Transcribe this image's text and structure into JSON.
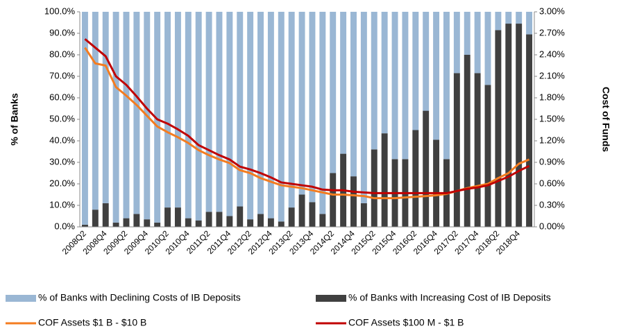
{
  "chart_data": {
    "type": "bar",
    "y_title": "% of Banks",
    "y2_title": "Cost of Funds",
    "categories": [
      "2008Q2",
      null,
      "2008Q4",
      null,
      "2009Q2",
      null,
      "2009Q4",
      null,
      "2010Q2",
      null,
      "2010Q4",
      null,
      "2011Q2",
      null,
      "2011Q4",
      null,
      "2012Q2",
      null,
      "2012Q4",
      null,
      "2013Q2",
      null,
      "2013Q4",
      null,
      "2014Q2",
      null,
      "2014Q4",
      null,
      "2015Q2",
      null,
      "2015Q4",
      null,
      "2016Q2",
      null,
      "2016Q4",
      null,
      "2017Q2",
      null,
      "2017Q4",
      null,
      "2018Q2",
      null,
      "2018Q4",
      null
    ],
    "ylim": [
      0,
      100
    ],
    "yticks": [
      {
        "value": 0,
        "label": "0.0%"
      },
      {
        "value": 10,
        "label": "10.0%"
      },
      {
        "value": 20,
        "label": "20.0%"
      },
      {
        "value": 30,
        "label": "30.0%"
      },
      {
        "value": 40,
        "label": "40.0%"
      },
      {
        "value": 50,
        "label": "50.0%"
      },
      {
        "value": 60,
        "label": "60.0%"
      },
      {
        "value": 70,
        "label": "70.0%"
      },
      {
        "value": 80,
        "label": "80.0%"
      },
      {
        "value": 90,
        "label": "90.0%"
      },
      {
        "value": 100,
        "label": "100.0%"
      }
    ],
    "y2lim": [
      0,
      3
    ],
    "y2ticks": [
      {
        "value": 0,
        "label": "0.00%"
      },
      {
        "value": 0.3,
        "label": "0.30%"
      },
      {
        "value": 0.6,
        "label": "0.60%"
      },
      {
        "value": 0.9,
        "label": "0.90%"
      },
      {
        "value": 1.2,
        "label": "1.20%"
      },
      {
        "value": 1.5,
        "label": "1.50%"
      },
      {
        "value": 1.8,
        "label": "1.80%"
      },
      {
        "value": 2.1,
        "label": "2.10%"
      },
      {
        "value": 2.4,
        "label": "2.40%"
      },
      {
        "value": 2.7,
        "label": "2.70%"
      },
      {
        "value": 3,
        "label": "3.00%"
      }
    ],
    "series": [
      {
        "name": "% of Banks with Increasing Cost of IB Deposits",
        "type": "bar",
        "color": "#404040",
        "values": [
          1,
          8,
          11,
          2,
          4,
          6,
          3.5,
          2,
          9,
          9,
          4,
          3,
          7,
          7,
          5,
          9.5,
          3.5,
          6,
          4,
          2.5,
          9,
          15,
          11.5,
          6,
          25,
          34,
          23.5,
          11,
          36,
          43.5,
          31.5,
          31.5,
          45,
          54,
          40.5,
          31.5,
          71.5,
          80,
          71.5,
          66,
          91.5,
          94.5,
          94.5,
          89.5
        ]
      },
      {
        "name": "% of Banks with Declining Costs of IB Deposits",
        "type": "bar",
        "color": "#9ab7d4",
        "values": [
          99,
          92,
          89,
          98,
          96,
          94,
          96.5,
          98,
          91,
          91,
          96,
          97,
          93,
          93,
          95,
          90.5,
          96.5,
          94,
          96,
          97.5,
          91,
          85,
          88.5,
          94,
          75,
          66,
          76.5,
          89,
          64,
          56.5,
          68.5,
          68.5,
          55,
          46,
          59.5,
          68.5,
          28.5,
          20,
          28.5,
          34,
          8.5,
          5.5,
          5.5,
          10.5
        ]
      },
      {
        "name": "COF Assets $1 B - $10 B",
        "type": "line",
        "axis": "y2",
        "color": "#f47c20",
        "values": [
          2.5,
          2.28,
          2.25,
          1.95,
          1.83,
          1.7,
          1.55,
          1.4,
          1.32,
          1.25,
          1.17,
          1.07,
          1.0,
          0.94,
          0.89,
          0.79,
          0.75,
          0.68,
          0.63,
          0.58,
          0.56,
          0.54,
          0.51,
          0.48,
          0.45,
          0.45,
          0.44,
          0.43,
          0.4,
          0.4,
          0.4,
          0.41,
          0.42,
          0.43,
          0.44,
          0.46,
          0.5,
          0.54,
          0.57,
          0.6,
          0.68,
          0.75,
          0.88,
          0.94
        ]
      },
      {
        "name": "COF Assets $100 M - $1 B",
        "type": "line",
        "axis": "y2",
        "color": "#c00000",
        "values": [
          2.62,
          2.5,
          2.38,
          2.1,
          1.98,
          1.82,
          1.65,
          1.5,
          1.44,
          1.36,
          1.27,
          1.14,
          1.07,
          1.0,
          0.94,
          0.84,
          0.8,
          0.75,
          0.69,
          0.62,
          0.6,
          0.58,
          0.56,
          0.52,
          0.51,
          0.51,
          0.49,
          0.48,
          0.47,
          0.47,
          0.47,
          0.47,
          0.47,
          0.47,
          0.47,
          0.47,
          0.5,
          0.53,
          0.55,
          0.58,
          0.64,
          0.7,
          0.78,
          0.85
        ]
      }
    ]
  }
}
